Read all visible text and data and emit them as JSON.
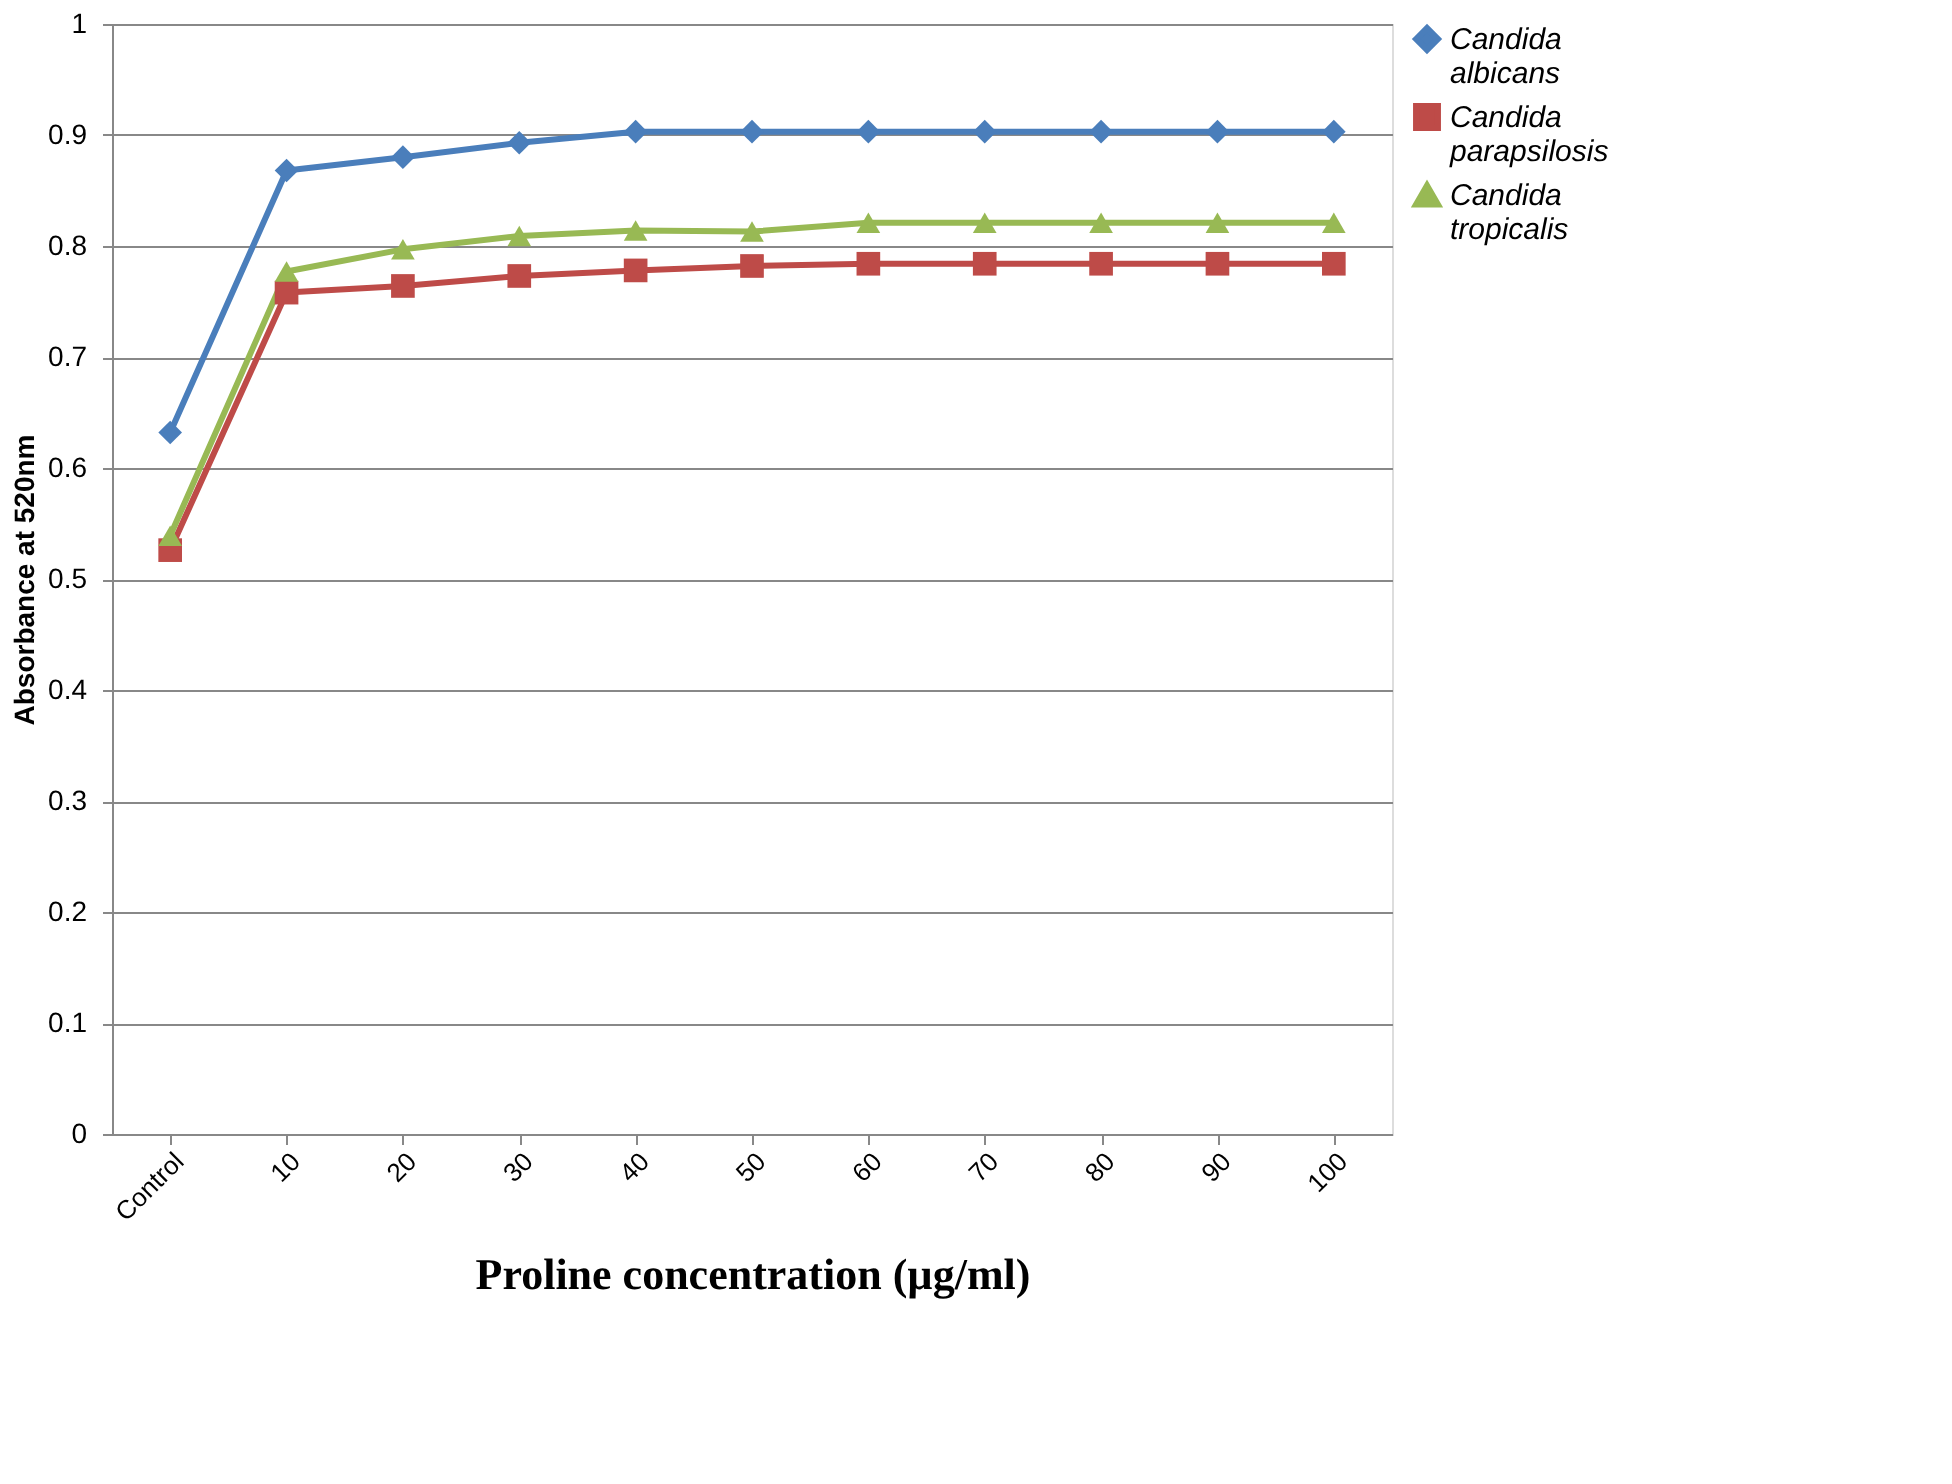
{
  "chart_data": {
    "type": "line",
    "xlabel": "Proline concentration (µg/ml)",
    "ylabel": "Absorbance  at  520nm",
    "categories": [
      "Control",
      "10",
      "20",
      "30",
      "40",
      "50",
      "60",
      "70",
      "80",
      "90",
      "100"
    ],
    "series": [
      {
        "name": "Candida albicans",
        "color": "#4a7ebb",
        "marker": "diamond",
        "values": [
          0.632,
          0.868,
          0.88,
          0.893,
          0.903,
          0.903,
          0.903,
          0.903,
          0.903,
          0.903,
          0.903
        ]
      },
      {
        "name": "Candida parapsilosis",
        "color": "#be4b48",
        "marker": "square",
        "values": [
          0.526,
          0.758,
          0.764,
          0.773,
          0.778,
          0.782,
          0.784,
          0.784,
          0.784,
          0.784,
          0.784
        ]
      },
      {
        "name": "Candida tropicalis",
        "color": "#98b954",
        "marker": "triangle",
        "values": [
          0.539,
          0.777,
          0.797,
          0.809,
          0.814,
          0.813,
          0.821,
          0.821,
          0.821,
          0.821,
          0.821
        ]
      }
    ],
    "ylim": [
      0,
      1
    ],
    "yticks": [
      0,
      0.1,
      0.2,
      0.3,
      0.4,
      0.5,
      0.6,
      0.7,
      0.8,
      0.9,
      1
    ],
    "grid": "y",
    "legend": "right",
    "line_style": "solid"
  }
}
